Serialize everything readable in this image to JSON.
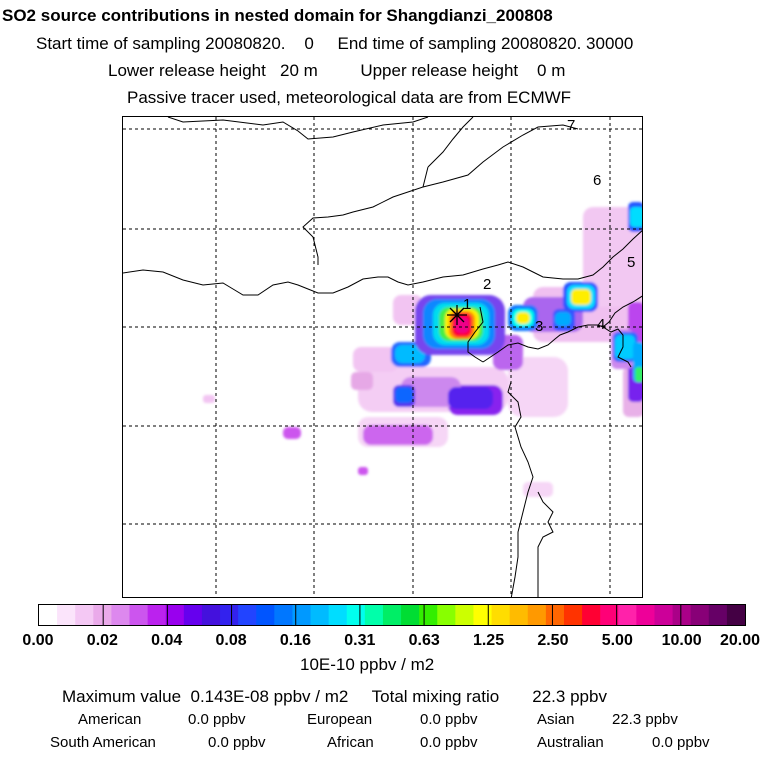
{
  "title": "SO2 source contributions in nested domain for Shangdianzi_200808",
  "header": {
    "start_label": "Start time of sampling",
    "start_value": "20080820.    0",
    "end_label": "End time of sampling",
    "end_value": "20080820. 30000",
    "lower_label": "Lower release height",
    "lower_value": "20 m",
    "upper_label": "Upper release height",
    "upper_value": "0 m",
    "note": "Passive tracer used, meteorological data are from ECMWF"
  },
  "map": {
    "station_marker": "asterisk-station-marker",
    "region_labels": [
      "1",
      "2",
      "3",
      "4",
      "5",
      "6",
      "7"
    ],
    "gridlines": "dashed"
  },
  "colorbar": {
    "tick_labels": [
      "0.00",
      "0.02",
      "0.04",
      "0.08",
      "0.16",
      "0.31",
      "0.63",
      "1.25",
      "2.50",
      "5.00",
      "10.00",
      "20.00"
    ],
    "colors": [
      "#ffffff",
      "#fbe4fb",
      "#f4c8f4",
      "#eaaaea",
      "#dd88ee",
      "#cc55ee",
      "#bb22ee",
      "#9900ee",
      "#6600ee",
      "#4411dd",
      "#3322ee",
      "#2244ff",
      "#0055ff",
      "#0077ff",
      "#0099ff",
      "#00bbff",
      "#00ddff",
      "#00ffee",
      "#00ffaa",
      "#00ee66",
      "#00dd33",
      "#33ee00",
      "#88ff00",
      "#ccff00",
      "#ffff00",
      "#ffdd00",
      "#ffbb00",
      "#ff9900",
      "#ff6600",
      "#ff3300",
      "#ff0033",
      "#ff0077",
      "#ff22aa",
      "#ee0099",
      "#cc0099",
      "#aa0088",
      "#880077",
      "#660066",
      "#440044"
    ],
    "unit": "10E-10 ppbv / m2"
  },
  "summary": {
    "max_label": "Maximum value",
    "max_value": "0.143E-08 ppbv / m2",
    "total_label": "Total mixing ratio",
    "total_value": "22.3 ppbv",
    "american_label": "American",
    "american_value": "0.0 ppbv",
    "european_label": "European",
    "european_value": "0.0 ppbv",
    "asian_label": "Asian",
    "asian_value": "22.3 ppbv",
    "south_american_label": "South American",
    "south_american_value": "0.0 ppbv",
    "african_label": "African",
    "african_value": "0.0 ppbv",
    "australian_label": "Australian",
    "australian_value": "0.0 ppbv"
  }
}
